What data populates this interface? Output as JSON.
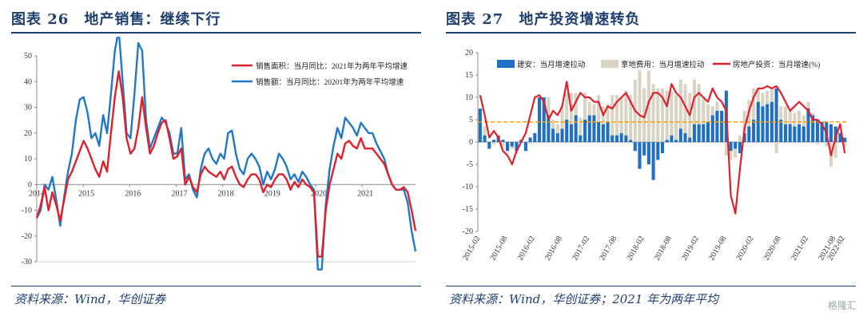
{
  "left": {
    "title": "图表 26　地产销售：继续下行",
    "source": "资料来源：Wind，华创证券"
  },
  "right": {
    "title": "图表 27　地产投资增速转负",
    "source": "资料来源：Wind，华创证券；2021 年为两年平均"
  },
  "watermark": "格隆汇",
  "chart_data": [
    {
      "type": "line",
      "ylim": [
        -30,
        50
      ],
      "yticks": [
        -30,
        -20,
        -10,
        0,
        10,
        20,
        30,
        40,
        50
      ],
      "x_tick_labels": [
        "2014",
        "2015",
        "2016",
        "2017",
        "2018",
        "2019",
        "2020",
        "2021"
      ],
      "legend_position": "top-right",
      "series": [
        {
          "name": "销售面积：当月同比：2021年为两年平均增速",
          "color": "#e0202a",
          "values": [
            -13,
            -8,
            -1,
            -10,
            -3,
            -8,
            -14,
            -6,
            2,
            5,
            9,
            13,
            17,
            14,
            10,
            6,
            3,
            9,
            5,
            20,
            34,
            44,
            34,
            18,
            12,
            14,
            22,
            34,
            22,
            12,
            15,
            20,
            24,
            25,
            18,
            10,
            11,
            14,
            0,
            3,
            -1,
            -3,
            4,
            7,
            5,
            4,
            3,
            5,
            2,
            6,
            7,
            3,
            0,
            -1,
            2,
            4,
            4,
            2,
            -3,
            0,
            -1,
            2,
            4,
            4,
            2,
            -2,
            1,
            -1,
            2,
            0,
            -1,
            -3,
            -28,
            -28,
            -10,
            0,
            6,
            12,
            10,
            16,
            17,
            15,
            14,
            18,
            14,
            14,
            14,
            12,
            10,
            8,
            4,
            0,
            -2,
            -2,
            -1,
            -3,
            -10,
            -18
          ]
        },
        {
          "name": "销售额：当月同比：20201年为两年平均增速",
          "color": "#1f78c8",
          "values": [
            -13,
            -10,
            0,
            -2,
            3,
            -6,
            -16,
            -5,
            5,
            12,
            25,
            33,
            34,
            28,
            18,
            20,
            15,
            27,
            20,
            35,
            52,
            60,
            40,
            20,
            18,
            35,
            55,
            52,
            25,
            14,
            18,
            22,
            26,
            24,
            20,
            12,
            12,
            22,
            2,
            4,
            -2,
            -5,
            6,
            12,
            14,
            10,
            8,
            12,
            10,
            20,
            21,
            12,
            6,
            4,
            10,
            12,
            10,
            7,
            0,
            5,
            2,
            6,
            12,
            10,
            7,
            2,
            4,
            1,
            5,
            3,
            0,
            -2,
            -33,
            -33,
            -8,
            6,
            15,
            22,
            18,
            26,
            24,
            22,
            19,
            24,
            22,
            20,
            20,
            16,
            13,
            10,
            4,
            0,
            -2,
            -2,
            -2,
            -7,
            -18,
            -26
          ]
        }
      ]
    },
    {
      "type": "bar+line",
      "ylim": [
        -20,
        20
      ],
      "yticks": [
        -20,
        -15,
        -10,
        -5,
        0,
        5,
        10,
        15,
        20
      ],
      "x_tick_labels": [
        "2015-02",
        "2015-08",
        "2016-02",
        "2016-08",
        "2017-02",
        "2017-08",
        "2018-02",
        "2018-08",
        "2019-02",
        "2019-08",
        "2020-02",
        "2020-08",
        "2021-02",
        "2021-08",
        "2022-02"
      ],
      "reference_line": 4.5,
      "legend_position": "top",
      "series": [
        {
          "name": "建安：当月增速拉动",
          "kind": "bar",
          "color": "#1f6fc4",
          "values": [
            7.5,
            1.5,
            -1.5,
            0.5,
            1.5,
            0.5,
            -2,
            -1,
            -2,
            0.5,
            -2,
            1,
            2,
            10,
            10,
            6,
            3,
            2,
            3,
            5,
            4,
            6,
            1.5,
            5,
            6,
            6,
            4.5,
            4,
            4.5,
            1.5,
            1.5,
            2,
            1.5,
            0.5,
            -2,
            -6,
            -3,
            -5,
            -8.5,
            -4,
            -2.5,
            0.5,
            1.5,
            0.5,
            3,
            2,
            1,
            4,
            4,
            4,
            4.5,
            6,
            7,
            7,
            11.5,
            -2,
            -1.5,
            -2.5,
            2,
            3.5,
            5,
            9,
            8,
            8.5,
            9,
            12,
            5,
            4,
            4,
            3.5,
            4,
            3.5,
            7.5,
            6,
            5,
            4.5,
            4.5,
            4,
            3.5,
            2,
            1
          ]
        },
        {
          "name": "拿地费用：当月增速拉动",
          "kind": "bar",
          "color": "#d8d3c3",
          "values": [
            0,
            2,
            0,
            -0.5,
            0,
            -1,
            0,
            -0.5,
            -0.5,
            0,
            0,
            -0.5,
            0,
            0,
            0,
            4,
            2,
            2,
            5,
            6,
            7,
            5,
            4,
            6,
            3,
            2.5,
            6,
            4,
            4,
            9,
            9,
            8,
            10,
            10,
            14,
            16,
            12,
            16,
            13,
            12,
            12,
            11,
            10,
            10,
            11,
            11,
            10,
            10,
            9,
            6,
            4,
            2,
            2,
            0,
            -3,
            -2,
            -2,
            1.5,
            5,
            6,
            7,
            3,
            3,
            3,
            3,
            -2.5,
            3,
            4,
            3,
            3,
            3,
            2.5,
            1.5,
            0.5,
            -0.5,
            0,
            -1,
            -5.5,
            -3.5,
            0,
            -1
          ]
        },
        {
          "name": "房地产投资：当月增速(%)",
          "kind": "line",
          "color": "#e0202a",
          "values": [
            10.5,
            6,
            1,
            2.5,
            1,
            -2,
            -3,
            -5,
            -2,
            0,
            2,
            6,
            10,
            10.5,
            9,
            5,
            7,
            6,
            8,
            13.5,
            7,
            9,
            11,
            10,
            10,
            9,
            9,
            6,
            8,
            7.5,
            9,
            10,
            11,
            9,
            7,
            6,
            5.5,
            9,
            11,
            11,
            10,
            8,
            13,
            11,
            10,
            8,
            6,
            10,
            11,
            10,
            9,
            12,
            10,
            9,
            7,
            -12,
            -16,
            -6,
            3,
            7,
            10,
            12,
            12,
            12.5,
            12,
            12.5,
            11,
            9,
            7,
            8,
            9,
            8,
            7,
            5,
            5,
            4,
            2,
            -3,
            1,
            4,
            -2.5
          ]
        }
      ]
    }
  ]
}
